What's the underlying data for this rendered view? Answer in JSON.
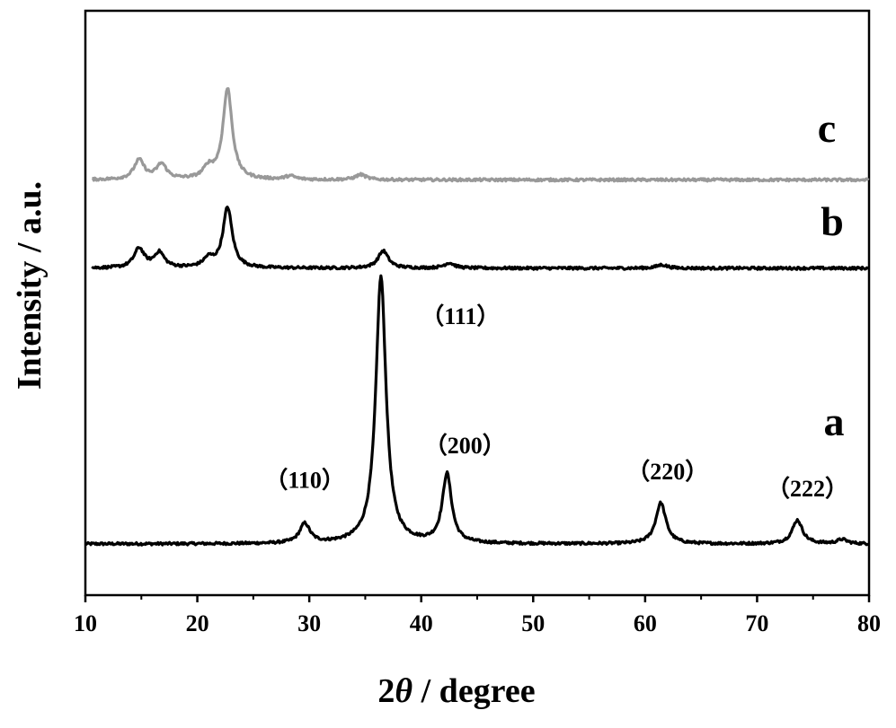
{
  "chart_data": {
    "type": "line",
    "title": "",
    "xlabel_prefix": "2",
    "xlabel_theta": "θ",
    "xlabel_suffix": " / degree",
    "ylabel": "Intensity / a.u.",
    "xlim": [
      10,
      80
    ],
    "xticks": [
      "10",
      "20",
      "30",
      "40",
      "50",
      "60",
      "70",
      "80"
    ],
    "y_ticks_shown": false,
    "grid": false,
    "legend": "none (series labeled inline at right)",
    "series": [
      {
        "name": "a",
        "color": "#000000",
        "baseline": 0.0,
        "peaks": [
          {
            "x": 29.6,
            "height": 0.045
          },
          {
            "x": 36.4,
            "height": 0.62
          },
          {
            "x": 42.3,
            "height": 0.16
          },
          {
            "x": 61.4,
            "height": 0.095
          },
          {
            "x": 73.6,
            "height": 0.055
          },
          {
            "x": 77.6,
            "height": 0.01
          }
        ]
      },
      {
        "name": "b",
        "color": "#000000",
        "baseline": 0.64,
        "peaks": [
          {
            "x": 14.8,
            "height": 0.045
          },
          {
            "x": 16.6,
            "height": 0.035
          },
          {
            "x": 21.0,
            "height": 0.02
          },
          {
            "x": 22.7,
            "height": 0.14
          },
          {
            "x": 36.6,
            "height": 0.04
          },
          {
            "x": 42.5,
            "height": 0.012
          },
          {
            "x": 61.5,
            "height": 0.008
          }
        ]
      },
      {
        "name": "c",
        "color": "#999999",
        "baseline": 0.845,
        "peaks": [
          {
            "x": 14.8,
            "height": 0.045
          },
          {
            "x": 16.8,
            "height": 0.035
          },
          {
            "x": 21.0,
            "height": 0.025
          },
          {
            "x": 22.7,
            "height": 0.21
          },
          {
            "x": 28.3,
            "height": 0.008
          },
          {
            "x": 34.6,
            "height": 0.012
          }
        ]
      }
    ],
    "annotations": [
      {
        "text": "（111）",
        "x": 43.5,
        "y": 0.51
      },
      {
        "text": "（110）",
        "x": 29.6,
        "y": 0.13
      },
      {
        "text": "（200）",
        "x": 43.9,
        "y": 0.21
      },
      {
        "text": "（220）",
        "x": 62.0,
        "y": 0.15
      },
      {
        "text": "（222）",
        "x": 74.5,
        "y": 0.11
      }
    ]
  }
}
